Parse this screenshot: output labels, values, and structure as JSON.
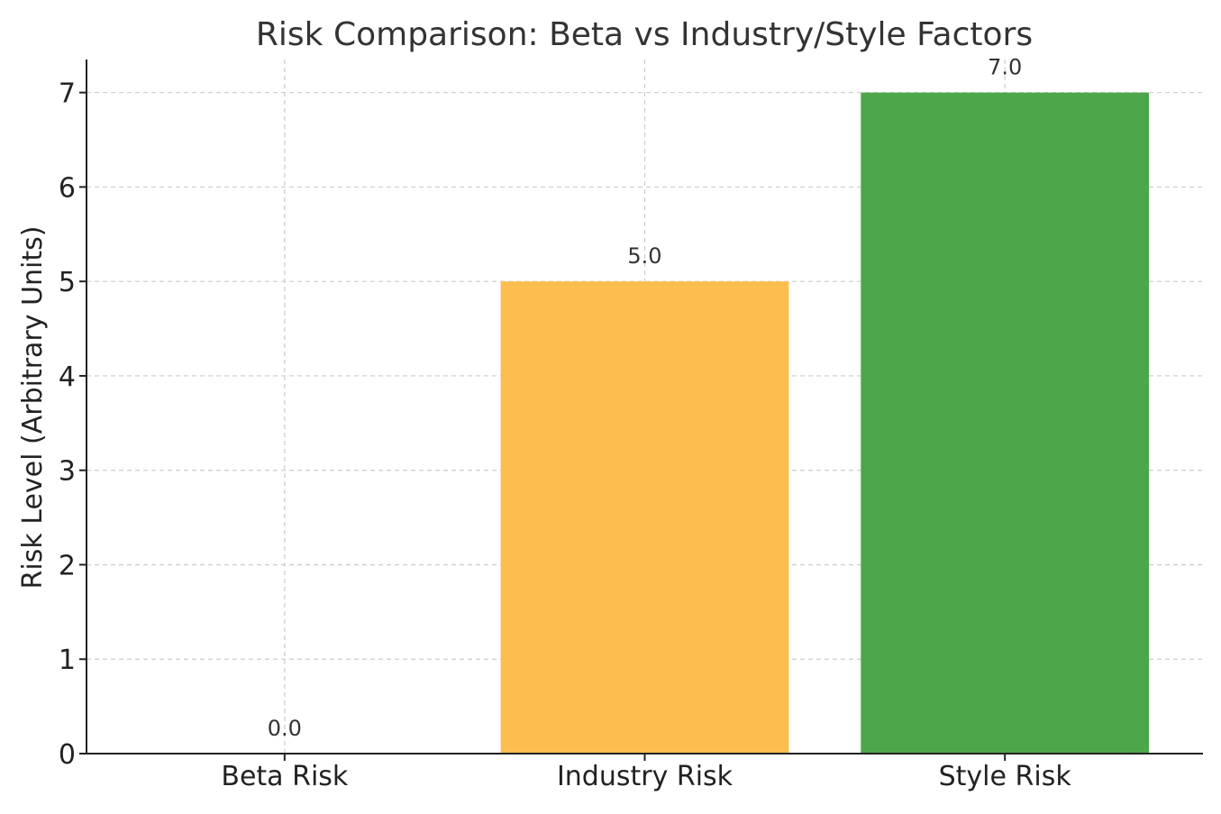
{
  "chart_data": {
    "type": "bar",
    "title": "Risk Comparison: Beta vs Industry/Style Factors",
    "xlabel": "",
    "ylabel": "Risk Level (Arbitrary Units)",
    "categories": [
      "Beta Risk",
      "Industry Risk",
      "Style Risk"
    ],
    "values": [
      0.0,
      5.0,
      7.0
    ],
    "data_labels": [
      "0.0",
      "5.0",
      "7.0"
    ],
    "colors": [
      "#1f77b4",
      "#fdbd4f",
      "#4ea64b"
    ],
    "ylim": [
      0,
      7.35
    ],
    "yticks": [
      0,
      1,
      2,
      3,
      4,
      5,
      6,
      7
    ],
    "ytick_labels": [
      "0",
      "1",
      "2",
      "3",
      "4",
      "5",
      "6",
      "7"
    ],
    "grid": true,
    "legend": "none"
  }
}
